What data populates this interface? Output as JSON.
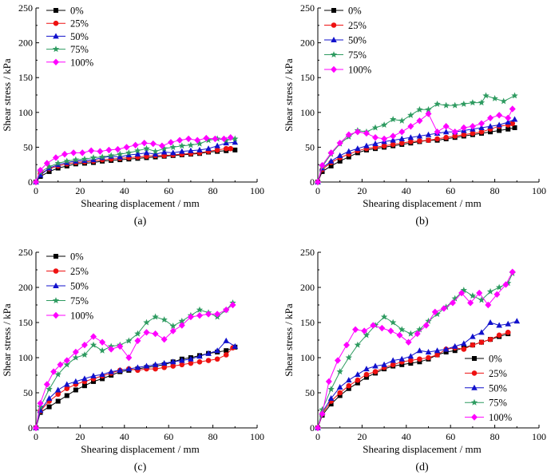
{
  "chart_data": [
    {
      "type": "line",
      "panel_label": "(a)",
      "xlabel": "Shearing displacement / mm",
      "ylabel": "Shear stress / kPa",
      "xlim": [
        0,
        100
      ],
      "ylim": [
        0,
        250
      ],
      "xticks": [
        0,
        20,
        40,
        60,
        80,
        100
      ],
      "yticks": [
        0,
        50,
        100,
        150,
        200,
        250
      ],
      "legend_placement": "top-left",
      "series": [
        {
          "name": "0%",
          "x": [
            0,
            2,
            6,
            10,
            14,
            18,
            22,
            26,
            30,
            34,
            38,
            42,
            46,
            50,
            54,
            58,
            62,
            66,
            70,
            74,
            78,
            82,
            86,
            90
          ],
          "values": [
            0,
            8,
            15,
            20,
            23,
            26,
            27,
            28,
            30,
            31,
            32,
            33,
            34,
            35,
            36,
            37,
            38,
            39,
            40,
            41,
            43,
            44,
            45,
            46
          ]
        },
        {
          "name": "25%",
          "x": [
            0,
            2,
            6,
            10,
            14,
            18,
            22,
            26,
            30,
            34,
            38,
            42,
            46,
            50,
            54,
            58,
            62,
            66,
            70,
            74,
            78,
            82,
            86,
            88
          ],
          "values": [
            0,
            12,
            19,
            23,
            26,
            28,
            29,
            30,
            32,
            33,
            34,
            35,
            36,
            37,
            38,
            38,
            39,
            40,
            41,
            42,
            44,
            46,
            48,
            48
          ]
        },
        {
          "name": "50%",
          "x": [
            0,
            2,
            6,
            10,
            14,
            18,
            22,
            26,
            30,
            34,
            38,
            42,
            46,
            50,
            54,
            58,
            62,
            66,
            70,
            74,
            78,
            82,
            86,
            90
          ],
          "values": [
            0,
            10,
            20,
            25,
            28,
            30,
            31,
            32,
            35,
            37,
            36,
            39,
            40,
            42,
            40,
            43,
            42,
            44,
            45,
            46,
            48,
            52,
            56,
            57
          ]
        },
        {
          "name": "75%",
          "x": [
            0,
            2,
            6,
            10,
            14,
            18,
            22,
            26,
            30,
            34,
            38,
            42,
            46,
            50,
            54,
            58,
            62,
            66,
            70,
            74,
            78,
            82,
            86,
            90
          ],
          "values": [
            0,
            14,
            22,
            27,
            30,
            32,
            33,
            35,
            36,
            38,
            40,
            42,
            45,
            48,
            44,
            48,
            50,
            52,
            53,
            55,
            60,
            62,
            60,
            62
          ]
        },
        {
          "name": "100%",
          "x": [
            0,
            2,
            5,
            9,
            13,
            17,
            21,
            25,
            29,
            33,
            37,
            41,
            45,
            49,
            53,
            57,
            61,
            65,
            69,
            73,
            77,
            81,
            85,
            88
          ],
          "values": [
            0,
            17,
            27,
            35,
            40,
            42,
            42,
            45,
            44,
            46,
            47,
            50,
            53,
            56,
            55,
            52,
            57,
            60,
            62,
            60,
            63,
            62,
            62,
            64
          ]
        }
      ]
    },
    {
      "type": "line",
      "panel_label": "(b)",
      "xlabel": "Shearing displacement / mm",
      "ylabel": "Shear stress / kPa",
      "xlim": [
        0,
        100
      ],
      "ylim": [
        0,
        250
      ],
      "xticks": [
        0,
        20,
        40,
        60,
        80,
        100
      ],
      "yticks": [
        0,
        50,
        100,
        150,
        200,
        250
      ],
      "legend_placement": "top-left",
      "series": [
        {
          "name": "0%",
          "x": [
            0,
            2,
            6,
            10,
            14,
            18,
            22,
            26,
            30,
            34,
            38,
            42,
            46,
            50,
            54,
            58,
            62,
            66,
            70,
            74,
            78,
            82,
            86,
            89
          ],
          "values": [
            0,
            15,
            23,
            30,
            36,
            42,
            46,
            48,
            50,
            52,
            54,
            56,
            58,
            60,
            60,
            62,
            64,
            66,
            68,
            70,
            72,
            74,
            76,
            78
          ]
        },
        {
          "name": "25%",
          "x": [
            0,
            2,
            6,
            10,
            14,
            18,
            22,
            26,
            30,
            34,
            38,
            42,
            46,
            50,
            54,
            58,
            62,
            66,
            70,
            74,
            78,
            82,
            86,
            88
          ],
          "values": [
            0,
            18,
            28,
            35,
            40,
            45,
            48,
            50,
            52,
            54,
            56,
            58,
            59,
            60,
            62,
            64,
            66,
            68,
            70,
            72,
            76,
            80,
            82,
            84
          ]
        },
        {
          "name": "50%",
          "x": [
            0,
            2,
            6,
            10,
            14,
            18,
            22,
            26,
            30,
            34,
            38,
            42,
            46,
            50,
            54,
            58,
            62,
            66,
            70,
            74,
            78,
            82,
            86,
            89
          ],
          "values": [
            0,
            20,
            30,
            38,
            44,
            48,
            52,
            55,
            58,
            60,
            62,
            64,
            66,
            68,
            70,
            72,
            72,
            74,
            76,
            78,
            80,
            82,
            86,
            90
          ]
        },
        {
          "name": "75%",
          "x": [
            0,
            2,
            6,
            10,
            14,
            18,
            22,
            26,
            30,
            34,
            38,
            42,
            46,
            50,
            54,
            58,
            62,
            66,
            70,
            74,
            76,
            80,
            84,
            89
          ],
          "values": [
            0,
            22,
            40,
            55,
            65,
            74,
            72,
            78,
            82,
            90,
            88,
            96,
            104,
            104,
            112,
            110,
            110,
            112,
            114,
            114,
            124,
            120,
            116,
            124
          ]
        },
        {
          "name": "100%",
          "x": [
            0,
            2,
            6,
            10,
            14,
            18,
            22,
            26,
            30,
            34,
            38,
            42,
            46,
            50,
            54,
            58,
            62,
            66,
            70,
            74,
            78,
            82,
            86,
            88
          ],
          "values": [
            0,
            24,
            42,
            56,
            68,
            72,
            70,
            64,
            62,
            66,
            72,
            80,
            88,
            98,
            72,
            80,
            72,
            78,
            80,
            84,
            92,
            96,
            92,
            105
          ]
        }
      ]
    },
    {
      "type": "line",
      "panel_label": "(c)",
      "xlabel": "Shearing displacement / mm",
      "ylabel": "Shear stress / kPa",
      "xlim": [
        0,
        100
      ],
      "ylim": [
        0,
        250
      ],
      "xticks": [
        0,
        20,
        40,
        60,
        80,
        100
      ],
      "yticks": [
        0,
        50,
        100,
        150,
        200,
        250
      ],
      "legend_placement": "top-left",
      "series": [
        {
          "name": "0%",
          "x": [
            0,
            2,
            6,
            10,
            14,
            18,
            22,
            26,
            30,
            34,
            38,
            42,
            46,
            50,
            54,
            58,
            62,
            66,
            70,
            74,
            78,
            82,
            86,
            90
          ],
          "values": [
            0,
            22,
            30,
            38,
            46,
            54,
            60,
            66,
            70,
            75,
            80,
            82,
            84,
            86,
            88,
            90,
            94,
            98,
            100,
            103,
            106,
            108,
            110,
            115
          ]
        },
        {
          "name": "25%",
          "x": [
            0,
            2,
            6,
            10,
            14,
            18,
            22,
            26,
            30,
            34,
            38,
            42,
            46,
            50,
            54,
            58,
            62,
            66,
            70,
            74,
            78,
            82,
            86,
            89
          ],
          "values": [
            0,
            24,
            38,
            48,
            56,
            62,
            66,
            70,
            74,
            78,
            82,
            84,
            82,
            84,
            84,
            86,
            88,
            90,
            92,
            94,
            96,
            98,
            104,
            114
          ]
        },
        {
          "name": "50%",
          "x": [
            0,
            2,
            6,
            10,
            14,
            18,
            22,
            26,
            30,
            34,
            38,
            42,
            46,
            50,
            54,
            58,
            62,
            66,
            70,
            74,
            78,
            82,
            86,
            90
          ],
          "values": [
            0,
            25,
            42,
            54,
            62,
            66,
            70,
            74,
            76,
            80,
            82,
            84,
            86,
            88,
            90,
            92,
            94,
            96,
            98,
            102,
            106,
            110,
            124,
            116
          ]
        },
        {
          "name": "75%",
          "x": [
            0,
            2,
            6,
            10,
            14,
            18,
            22,
            26,
            30,
            34,
            38,
            42,
            46,
            50,
            54,
            58,
            62,
            66,
            70,
            74,
            78,
            82,
            86,
            89
          ],
          "values": [
            0,
            30,
            55,
            76,
            90,
            100,
            104,
            118,
            110,
            116,
            118,
            124,
            134,
            150,
            158,
            154,
            145,
            152,
            160,
            168,
            164,
            158,
            168,
            178
          ]
        },
        {
          "name": "100%",
          "x": [
            0,
            2,
            5,
            8,
            11,
            14,
            18,
            22,
            26,
            30,
            34,
            38,
            42,
            46,
            50,
            54,
            58,
            62,
            66,
            70,
            74,
            78,
            82,
            86,
            89
          ],
          "values": [
            0,
            35,
            62,
            80,
            90,
            96,
            108,
            118,
            130,
            122,
            112,
            116,
            100,
            124,
            136,
            134,
            126,
            138,
            146,
            158,
            160,
            162,
            162,
            168,
            175
          ]
        }
      ]
    },
    {
      "type": "line",
      "panel_label": "(d)",
      "xlabel": "Shearing displacement / mm",
      "ylabel": "Shear stress / kPa",
      "xlim": [
        0,
        100
      ],
      "ylim": [
        0,
        250
      ],
      "xticks": [
        0,
        20,
        40,
        60,
        80,
        100
      ],
      "yticks": [
        0,
        50,
        100,
        150,
        200,
        250
      ],
      "legend_placement": "bottom-right",
      "series": [
        {
          "name": "0%",
          "x": [
            0,
            2,
            6,
            10,
            14,
            18,
            22,
            26,
            30,
            34,
            38,
            42,
            46,
            50,
            54,
            58,
            62,
            66,
            70,
            74,
            78,
            82,
            86
          ],
          "values": [
            0,
            18,
            34,
            46,
            56,
            64,
            72,
            78,
            84,
            88,
            90,
            92,
            94,
            98,
            104,
            108,
            110,
            114,
            118,
            122,
            126,
            130,
            134
          ]
        },
        {
          "name": "25%",
          "x": [
            0,
            2,
            6,
            10,
            14,
            18,
            22,
            26,
            30,
            34,
            38,
            42,
            46,
            50,
            54,
            58,
            62,
            66,
            70,
            74,
            78,
            82,
            86
          ],
          "values": [
            0,
            20,
            38,
            50,
            60,
            68,
            76,
            80,
            86,
            90,
            94,
            96,
            98,
            100,
            104,
            112,
            114,
            112,
            118,
            122,
            126,
            132,
            136
          ]
        },
        {
          "name": "50%",
          "x": [
            0,
            2,
            6,
            10,
            14,
            18,
            22,
            26,
            30,
            34,
            38,
            42,
            46,
            50,
            54,
            58,
            62,
            66,
            70,
            74,
            78,
            82,
            86,
            90
          ],
          "values": [
            0,
            22,
            42,
            58,
            68,
            76,
            84,
            88,
            90,
            96,
            98,
            102,
            110,
            108,
            110,
            112,
            116,
            120,
            130,
            136,
            150,
            146,
            148,
            152
          ]
        },
        {
          "name": "75%",
          "x": [
            0,
            2,
            6,
            10,
            14,
            18,
            22,
            26,
            30,
            34,
            38,
            42,
            46,
            50,
            54,
            58,
            62,
            66,
            70,
            74,
            78,
            82,
            86,
            88
          ],
          "values": [
            0,
            26,
            55,
            80,
            100,
            118,
            132,
            146,
            158,
            150,
            140,
            134,
            140,
            152,
            162,
            172,
            184,
            196,
            188,
            182,
            194,
            200,
            206,
            220
          ]
        },
        {
          "name": "100%",
          "x": [
            0,
            2,
            5,
            9,
            13,
            17,
            21,
            25,
            29,
            33,
            37,
            41,
            45,
            49,
            53,
            57,
            61,
            65,
            69,
            73,
            77,
            81,
            85,
            88
          ],
          "values": [
            0,
            20,
            66,
            96,
            118,
            140,
            138,
            146,
            142,
            138,
            132,
            122,
            134,
            146,
            165,
            170,
            178,
            192,
            178,
            192,
            175,
            190,
            204,
            222
          ]
        }
      ]
    }
  ],
  "colors": {
    "0%": "#000000",
    "25%": "#ee1111",
    "50%": "#1111cc",
    "75%": "#2e9b60",
    "100%": "#ff00ff"
  }
}
